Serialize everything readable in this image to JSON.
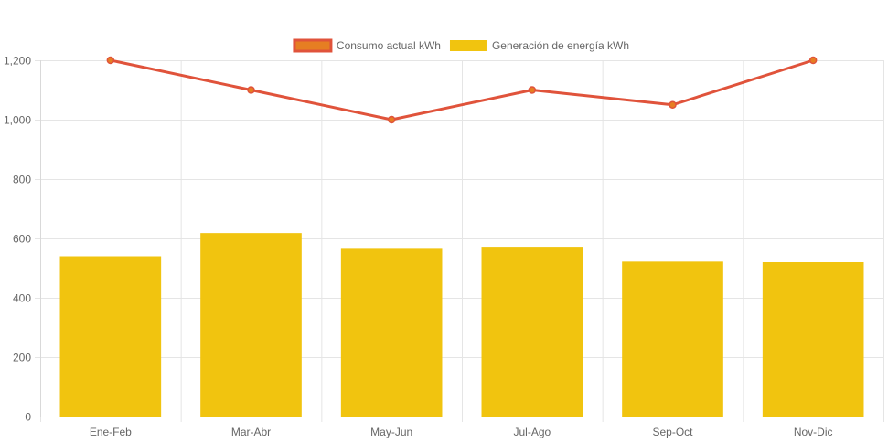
{
  "chart_data": {
    "type": "bar",
    "title": "",
    "xlabel": "",
    "ylabel": "",
    "categories": [
      "Ene-Feb",
      "Mar-Abr",
      "May-Jun",
      "Jul-Ago",
      "Sep-Oct",
      "Nov-Dic"
    ],
    "ylim": [
      0,
      1200
    ],
    "yticks": [
      0,
      200,
      400,
      600,
      800,
      1000,
      1200
    ],
    "ytick_labels": [
      "0",
      "200",
      "400",
      "600",
      "800",
      "1,000",
      "1,200"
    ],
    "grid": true,
    "legend_position": "top-center",
    "series": [
      {
        "name": "Consumo actual kWh",
        "type": "line",
        "color": "#e0533b",
        "point_fill": "#e67e22",
        "values": [
          1200,
          1100,
          1000,
          1100,
          1050,
          1200
        ]
      },
      {
        "name": "Generación de energía kWh",
        "type": "bar",
        "color": "#f1c40f",
        "values": [
          540,
          618,
          565,
          572,
          522,
          520
        ]
      }
    ]
  }
}
